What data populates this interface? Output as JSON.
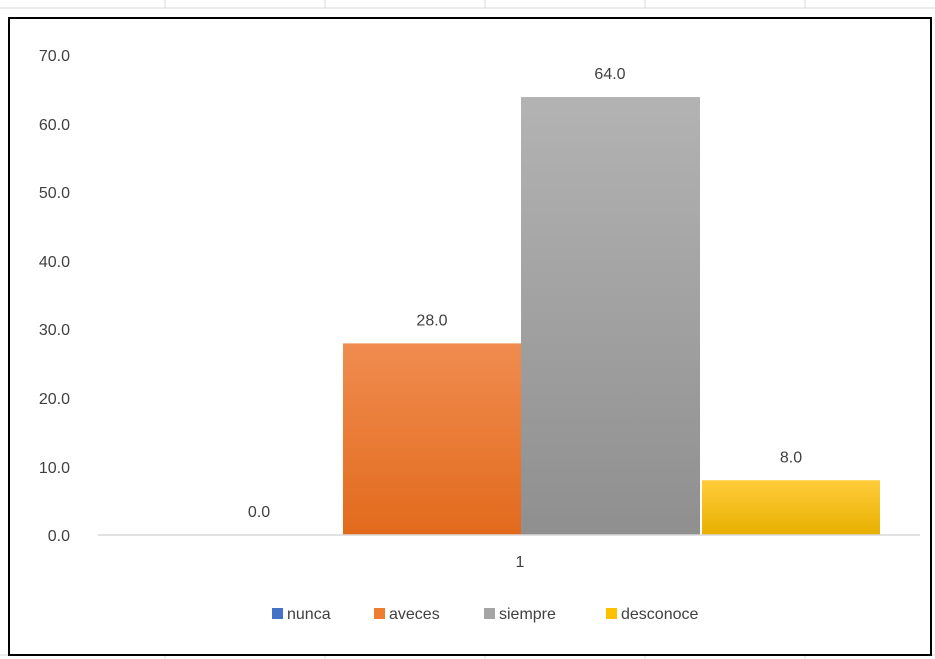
{
  "chart_data": {
    "type": "bar",
    "categories": [
      "1"
    ],
    "series": [
      {
        "name": "nunca",
        "values": [
          0.0
        ],
        "color": "#4472C4"
      },
      {
        "name": "aveces",
        "values": [
          28.0
        ],
        "color": "#ED7D31"
      },
      {
        "name": "siempre",
        "values": [
          64.0
        ],
        "color": "#A5A5A5"
      },
      {
        "name": "desconoce",
        "values": [
          8.0
        ],
        "color": "#FFC000"
      }
    ],
    "y_ticks": [
      "0.0",
      "10.0",
      "20.0",
      "30.0",
      "40.0",
      "50.0",
      "60.0",
      "70.0"
    ],
    "data_labels": [
      "0.0",
      "28.0",
      "64.0",
      "8.0"
    ],
    "ylim": [
      0,
      70
    ],
    "grid": false,
    "legend_position": "bottom",
    "title": "",
    "xlabel": "",
    "ylabel": ""
  }
}
